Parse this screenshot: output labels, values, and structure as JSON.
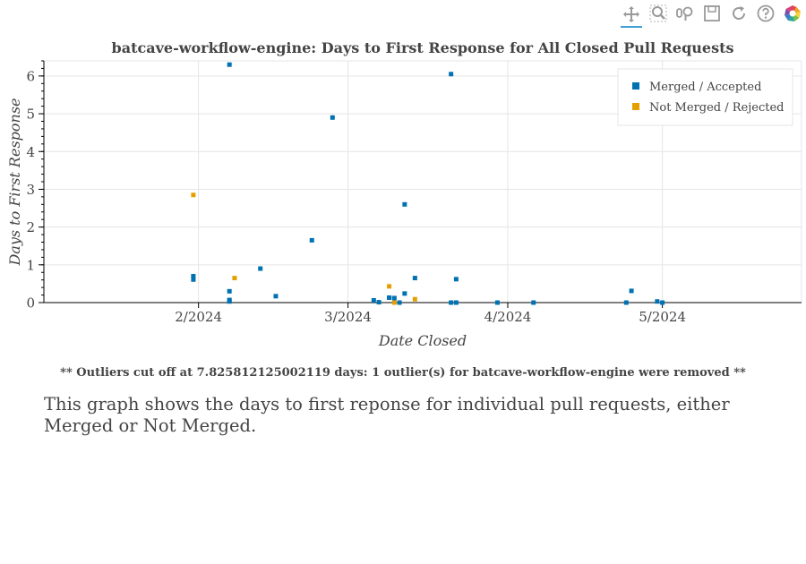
{
  "toolbar": {
    "tools": [
      {
        "name": "pan-icon",
        "active": true
      },
      {
        "name": "box-zoom-icon",
        "active": false
      },
      {
        "name": "wheel-zoom-icon",
        "active": false
      },
      {
        "name": "save-icon",
        "active": false
      },
      {
        "name": "reset-icon",
        "active": false
      },
      {
        "name": "help-icon",
        "active": false
      },
      {
        "name": "bokeh-logo-icon",
        "active": false
      }
    ]
  },
  "chart_data": {
    "type": "scatter",
    "title": "batcave-workflow-engine: Days to First Response for All Closed Pull Requests",
    "xlabel": "Date Closed",
    "ylabel": "Days to First Response",
    "x_type": "date",
    "xlim": [
      "2024-01-02",
      "2024-05-28"
    ],
    "ylim": [
      0,
      6.4
    ],
    "x_ticks": [
      "2024-02-01",
      "2024-03-01",
      "2024-04-01",
      "2024-05-01"
    ],
    "x_tick_labels": [
      "2/2024",
      "3/2024",
      "4/2024",
      "5/2024"
    ],
    "y_ticks": [
      0,
      1,
      2,
      3,
      4,
      5,
      6
    ],
    "grid": true,
    "legend_position": "top-right",
    "series": [
      {
        "name": "Merged / Accepted",
        "color": "#0072b2",
        "points": [
          [
            "2024-01-31",
            0.7
          ],
          [
            "2024-01-31",
            0.61
          ],
          [
            "2024-02-07",
            6.3
          ],
          [
            "2024-02-07",
            0.3
          ],
          [
            "2024-02-07",
            0.07
          ],
          [
            "2024-02-07",
            0.03
          ],
          [
            "2024-02-13",
            0.9
          ],
          [
            "2024-02-16",
            0.17
          ],
          [
            "2024-02-23",
            1.65
          ],
          [
            "2024-02-27",
            4.9
          ],
          [
            "2024-03-06",
            0.06
          ],
          [
            "2024-03-07",
            0.01
          ],
          [
            "2024-03-09",
            0.13
          ],
          [
            "2024-03-09",
            0.13
          ],
          [
            "2024-03-10",
            0.12
          ],
          [
            "2024-03-11",
            0.0
          ],
          [
            "2024-03-12",
            0.24
          ],
          [
            "2024-03-12",
            2.6
          ],
          [
            "2024-03-14",
            0.65
          ],
          [
            "2024-03-21",
            6.05
          ],
          [
            "2024-03-21",
            0.0
          ],
          [
            "2024-03-22",
            0.62
          ],
          [
            "2024-03-22",
            0.0
          ],
          [
            "2024-03-30",
            0.0
          ],
          [
            "2024-04-06",
            0.0
          ],
          [
            "2024-04-25",
            0.31
          ],
          [
            "2024-04-24",
            0.0
          ],
          [
            "2024-04-30",
            0.03
          ],
          [
            "2024-05-01",
            0.0
          ]
        ]
      },
      {
        "name": "Not Merged / Rejected",
        "color": "#e69f00",
        "points": [
          [
            "2024-01-31",
            2.85
          ],
          [
            "2024-02-08",
            0.65
          ],
          [
            "2024-03-09",
            0.43
          ],
          [
            "2024-03-10",
            0.0
          ],
          [
            "2024-03-14",
            0.09
          ]
        ]
      }
    ]
  },
  "note": "** Outliers cut off at 7.825812125002119 days: 1 outlier(s) for batcave-workflow-engine were removed **",
  "description": "This graph shows the days to first reponse for individual pull requests, either Merged or Not Merged."
}
